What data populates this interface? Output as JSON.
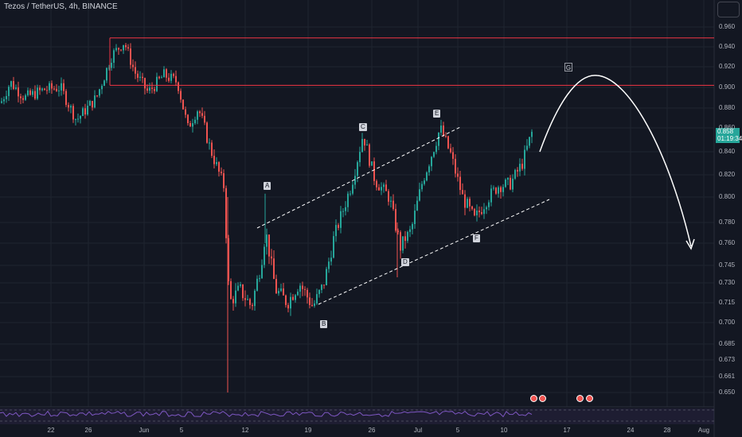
{
  "header": {
    "title": "Tezos / TetherUS, 4h, BINANCE"
  },
  "price_tag": {
    "price": "0.858",
    "countdown": "01:19:34"
  },
  "colors": {
    "background": "#131722",
    "up": "#26a69a",
    "down": "#ef5350",
    "resistance": "#f23645",
    "projection": "#ffffff",
    "rsi": "#7e57c2"
  },
  "chart_data": {
    "type": "candlestick",
    "symbol": "Tezos / TetherUS",
    "interval": "4h",
    "exchange": "BINANCE",
    "y_ticks": [
      "0.960",
      "0.940",
      "0.920",
      "0.900",
      "0.880",
      "0.860",
      "0.840",
      "0.820",
      "0.800",
      "0.780",
      "0.760",
      "0.745",
      "0.730",
      "0.715",
      "0.700",
      "0.685",
      "0.673",
      "0.661",
      "0.650"
    ],
    "x_ticks": [
      "22",
      "26",
      "Jun",
      "5",
      "12",
      "19",
      "26",
      "Jul",
      "5",
      "10",
      "17",
      "24",
      "28",
      "Aug"
    ],
    "last_price": 0.858,
    "resistance_levels": [
      0.949,
      0.902
    ],
    "wave_labels": [
      {
        "label": "A",
        "price": 0.803
      },
      {
        "label": "B",
        "price": 0.708
      },
      {
        "label": "C",
        "price": 0.86
      },
      {
        "label": "D",
        "price": 0.752
      },
      {
        "label": "E",
        "price": 0.868
      },
      {
        "label": "F",
        "price": 0.775
      },
      {
        "label": "G",
        "price": 0.912
      }
    ],
    "projection": {
      "peak": 0.912,
      "target": 0.76
    }
  }
}
